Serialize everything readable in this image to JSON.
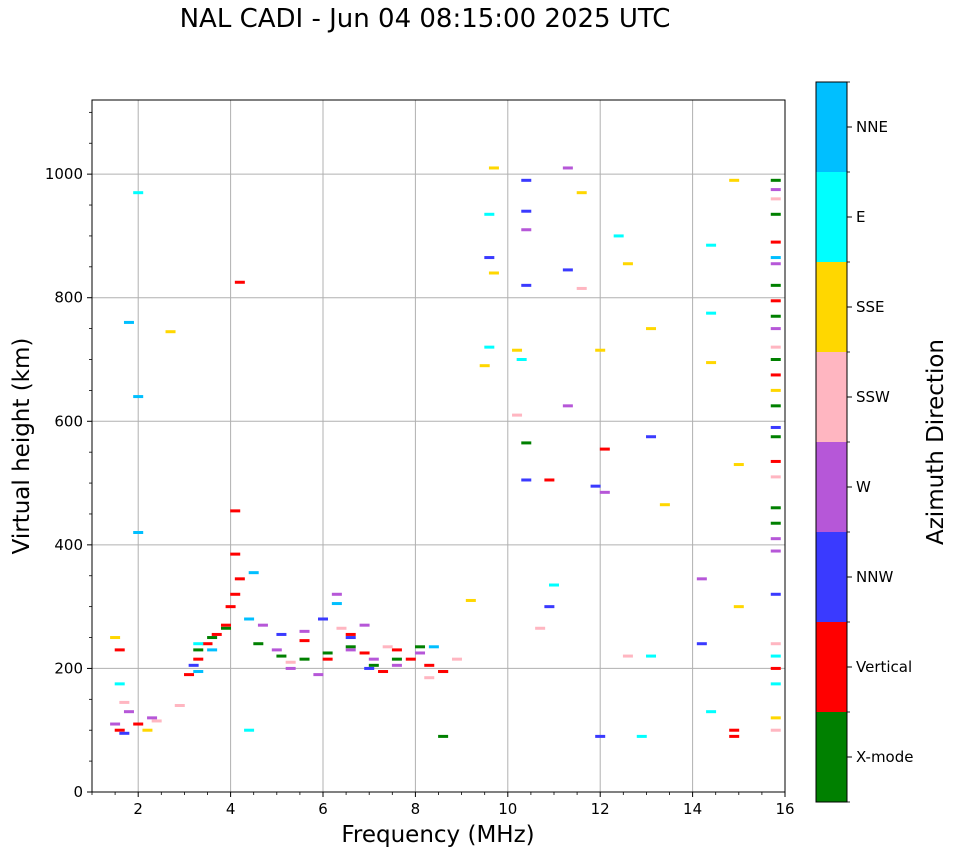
{
  "title": "NAL CADI - Jun 04 08:15:00 2025 UTC",
  "chart_data": {
    "type": "scatter",
    "title": "NAL CADI - Jun 04 08:15:00 2025 UTC",
    "xlabel": "Frequency (MHz)",
    "ylabel": "Virtual height (km)",
    "xlim": [
      1,
      16
    ],
    "ylim": [
      0,
      1120
    ],
    "xticks": [
      2,
      4,
      6,
      8,
      10,
      12,
      14,
      16
    ],
    "yticks": [
      0,
      200,
      400,
      600,
      800,
      1000
    ],
    "grid": true,
    "colorbar": {
      "label": "Azimuth Direction",
      "categories": [
        "X-mode",
        "Vertical",
        "NNW",
        "W",
        "SSW",
        "SSE",
        "E",
        "NNE"
      ],
      "colors": {
        "X-mode": "#008000",
        "Vertical": "#ff0000",
        "NNW": "#3a3aff",
        "W": "#b657d8",
        "SSW": "#ffb6c1",
        "SSE": "#ffd700",
        "E": "#00ffff",
        "NNE": "#00bfff"
      }
    },
    "series": [
      {
        "name": "X-mode",
        "points": [
          [
            3.3,
            230
          ],
          [
            3.6,
            250
          ],
          [
            3.9,
            265
          ],
          [
            4.6,
            240
          ],
          [
            5.1,
            220
          ],
          [
            5.6,
            215
          ],
          [
            6.1,
            225
          ],
          [
            6.6,
            235
          ],
          [
            7.1,
            205
          ],
          [
            7.6,
            215
          ],
          [
            8.1,
            235
          ],
          [
            8.6,
            195
          ],
          [
            8.6,
            90
          ],
          [
            10.4,
            565
          ],
          [
            15.8,
            990
          ],
          [
            15.8,
            935
          ],
          [
            15.8,
            820
          ],
          [
            15.8,
            770
          ],
          [
            15.8,
            700
          ],
          [
            15.8,
            625
          ],
          [
            15.8,
            575
          ],
          [
            15.8,
            460
          ],
          [
            15.8,
            435
          ]
        ]
      },
      {
        "name": "Vertical",
        "points": [
          [
            1.6,
            100
          ],
          [
            1.6,
            230
          ],
          [
            2.0,
            110
          ],
          [
            3.1,
            190
          ],
          [
            3.3,
            215
          ],
          [
            3.5,
            240
          ],
          [
            3.7,
            255
          ],
          [
            3.9,
            270
          ],
          [
            4.0,
            300
          ],
          [
            4.1,
            320
          ],
          [
            4.2,
            345
          ],
          [
            4.1,
            385
          ],
          [
            4.1,
            455
          ],
          [
            4.2,
            825
          ],
          [
            5.6,
            245
          ],
          [
            6.1,
            215
          ],
          [
            6.6,
            255
          ],
          [
            6.9,
            225
          ],
          [
            7.3,
            195
          ],
          [
            7.6,
            230
          ],
          [
            7.9,
            215
          ],
          [
            8.3,
            205
          ],
          [
            8.6,
            195
          ],
          [
            10.9,
            505
          ],
          [
            12.1,
            555
          ],
          [
            14.9,
            100
          ],
          [
            14.9,
            90
          ],
          [
            15.8,
            890
          ],
          [
            15.8,
            795
          ],
          [
            15.8,
            675
          ],
          [
            15.8,
            535
          ],
          [
            15.8,
            200
          ]
        ]
      },
      {
        "name": "NNW",
        "points": [
          [
            1.7,
            95
          ],
          [
            3.2,
            205
          ],
          [
            5.1,
            255
          ],
          [
            6.0,
            280
          ],
          [
            6.6,
            250
          ],
          [
            7.0,
            200
          ],
          [
            9.6,
            865
          ],
          [
            10.4,
            990
          ],
          [
            10.4,
            940
          ],
          [
            10.4,
            820
          ],
          [
            10.4,
            505
          ],
          [
            10.9,
            300
          ],
          [
            11.3,
            845
          ],
          [
            11.9,
            495
          ],
          [
            12.0,
            90
          ],
          [
            13.1,
            575
          ],
          [
            14.2,
            240
          ],
          [
            15.8,
            590
          ],
          [
            15.8,
            320
          ]
        ]
      },
      {
        "name": "W",
        "points": [
          [
            1.5,
            110
          ],
          [
            1.8,
            130
          ],
          [
            2.3,
            120
          ],
          [
            4.7,
            270
          ],
          [
            5.0,
            230
          ],
          [
            5.3,
            200
          ],
          [
            5.6,
            260
          ],
          [
            5.9,
            190
          ],
          [
            6.3,
            320
          ],
          [
            6.6,
            230
          ],
          [
            6.9,
            270
          ],
          [
            7.1,
            215
          ],
          [
            7.6,
            205
          ],
          [
            8.1,
            225
          ],
          [
            10.4,
            910
          ],
          [
            11.3,
            1010
          ],
          [
            11.3,
            625
          ],
          [
            12.1,
            485
          ],
          [
            14.2,
            345
          ],
          [
            15.8,
            975
          ],
          [
            15.8,
            855
          ],
          [
            15.8,
            750
          ],
          [
            15.8,
            410
          ],
          [
            15.8,
            390
          ]
        ]
      },
      {
        "name": "SSW",
        "points": [
          [
            1.7,
            145
          ],
          [
            2.4,
            115
          ],
          [
            2.9,
            140
          ],
          [
            5.3,
            210
          ],
          [
            6.4,
            265
          ],
          [
            7.4,
            235
          ],
          [
            8.3,
            185
          ],
          [
            8.9,
            215
          ],
          [
            10.2,
            610
          ],
          [
            10.7,
            265
          ],
          [
            11.6,
            815
          ],
          [
            12.6,
            220
          ],
          [
            15.8,
            960
          ],
          [
            15.8,
            720
          ],
          [
            15.8,
            510
          ],
          [
            15.8,
            240
          ],
          [
            15.8,
            100
          ]
        ]
      },
      {
        "name": "SSE",
        "points": [
          [
            1.5,
            250
          ],
          [
            2.2,
            100
          ],
          [
            2.7,
            745
          ],
          [
            9.2,
            310
          ],
          [
            9.5,
            690
          ],
          [
            9.7,
            1010
          ],
          [
            9.7,
            840
          ],
          [
            10.2,
            715
          ],
          [
            11.6,
            970
          ],
          [
            12.0,
            715
          ],
          [
            12.6,
            855
          ],
          [
            13.1,
            750
          ],
          [
            13.4,
            465
          ],
          [
            14.4,
            695
          ],
          [
            14.9,
            990
          ],
          [
            15.0,
            530
          ],
          [
            15.0,
            300
          ],
          [
            15.8,
            650
          ],
          [
            15.8,
            120
          ]
        ]
      },
      {
        "name": "E",
        "points": [
          [
            1.6,
            175
          ],
          [
            2.0,
            970
          ],
          [
            3.3,
            240
          ],
          [
            4.4,
            100
          ],
          [
            9.6,
            935
          ],
          [
            9.6,
            720
          ],
          [
            10.3,
            700
          ],
          [
            11.0,
            335
          ],
          [
            12.4,
            900
          ],
          [
            12.9,
            90
          ],
          [
            13.1,
            220
          ],
          [
            14.4,
            885
          ],
          [
            14.4,
            775
          ],
          [
            14.4,
            130
          ],
          [
            15.8,
            220
          ],
          [
            15.8,
            175
          ]
        ]
      },
      {
        "name": "NNE",
        "points": [
          [
            1.8,
            760
          ],
          [
            2.0,
            640
          ],
          [
            2.0,
            420
          ],
          [
            3.3,
            195
          ],
          [
            3.6,
            230
          ],
          [
            4.5,
            355
          ],
          [
            4.4,
            280
          ],
          [
            6.3,
            305
          ],
          [
            8.4,
            235
          ],
          [
            15.8,
            865
          ]
        ]
      }
    ]
  }
}
